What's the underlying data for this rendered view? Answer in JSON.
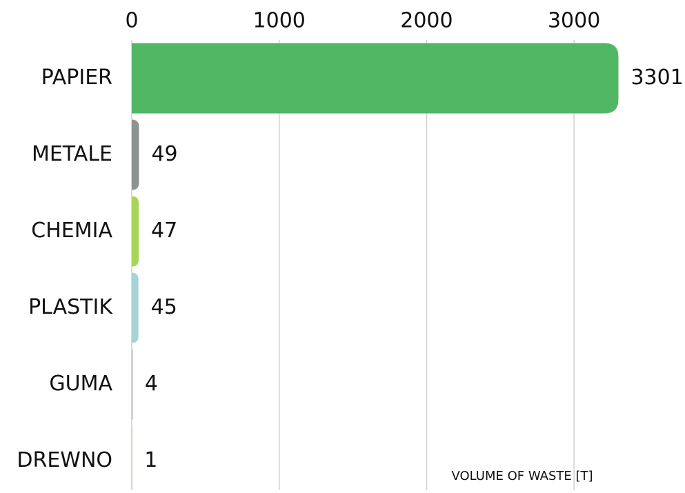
{
  "chart_data": {
    "type": "barh",
    "x_label": "VOLUME OF WASTE [T]",
    "categories": [
      "PAPIER",
      "METALE",
      "CHEMIA",
      "PLASTIK",
      "GUMA",
      "DREWNO"
    ],
    "values": [
      3301,
      49,
      47,
      45,
      4,
      1
    ],
    "colors": [
      "#52b765",
      "#8c9490",
      "#a8d45a",
      "#a6d3d8",
      "#7a7f7c",
      "#7d8a3c"
    ],
    "xlim": [
      0,
      3500
    ],
    "xticks": [
      0,
      1000,
      2000,
      3000
    ],
    "grid": true
  }
}
